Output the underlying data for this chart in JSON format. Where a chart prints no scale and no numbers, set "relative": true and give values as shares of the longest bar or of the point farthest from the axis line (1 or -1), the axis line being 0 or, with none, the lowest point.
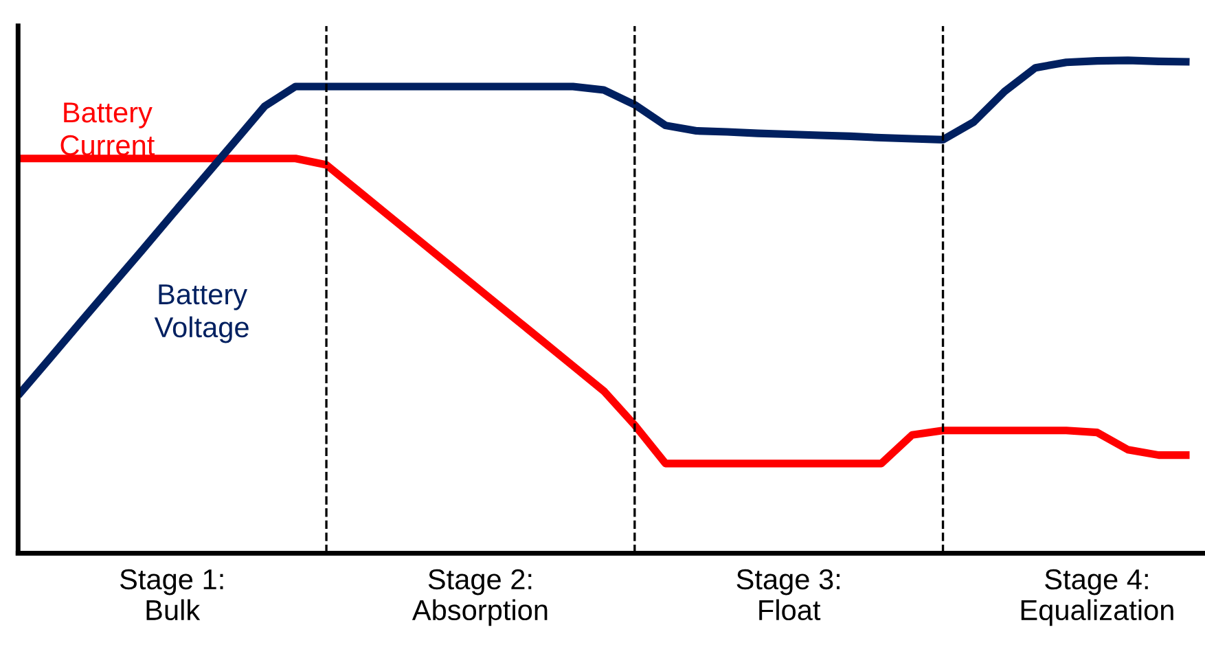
{
  "chart_data": {
    "type": "line",
    "relative": true,
    "categories": [
      null,
      null,
      null,
      null,
      null,
      "Stage 1:\nBulk",
      null,
      null,
      null,
      null,
      null,
      null,
      null,
      null,
      null,
      "Stage 2:\nAbsorption",
      null,
      null,
      null,
      null,
      null,
      null,
      null,
      null,
      null,
      "Stage 3:\nFloat",
      null,
      null,
      null,
      null,
      null,
      null,
      null,
      null,
      null,
      "Stage 4:\nEqualization",
      null,
      null,
      null
    ],
    "grid": "x",
    "legend": false,
    "marker": "none",
    "line_style": "solid",
    "series": [
      {
        "name": "Battery Current",
        "color": "#ff0000",
        "values": [
          0.801,
          0.801,
          0.801,
          0.801,
          0.801,
          0.801,
          0.801,
          0.801,
          0.801,
          0.801,
          0.788,
          0.737,
          0.686,
          0.635,
          0.584,
          0.533,
          0.482,
          0.431,
          0.38,
          0.329,
          0.26,
          0.182,
          0.182,
          0.182,
          0.182,
          0.182,
          0.182,
          0.182,
          0.182,
          0.24,
          0.249,
          0.249,
          0.249,
          0.249,
          0.249,
          0.245,
          0.21,
          0.199,
          0.199
        ]
      },
      {
        "name": "Battery Voltage",
        "color": "#002060",
        "values": [
          0.32,
          0.393,
          0.467,
          0.54,
          0.613,
          0.687,
          0.76,
          0.833,
          0.907,
          0.947,
          0.947,
          0.947,
          0.947,
          0.947,
          0.947,
          0.947,
          0.947,
          0.947,
          0.947,
          0.94,
          0.91,
          0.868,
          0.857,
          0.855,
          0.852,
          0.85,
          0.848,
          0.846,
          0.843,
          0.841,
          0.839,
          0.875,
          0.937,
          0.985,
          0.996,
          0.999,
          1.0,
          0.998,
          0.997
        ]
      }
    ]
  }
}
